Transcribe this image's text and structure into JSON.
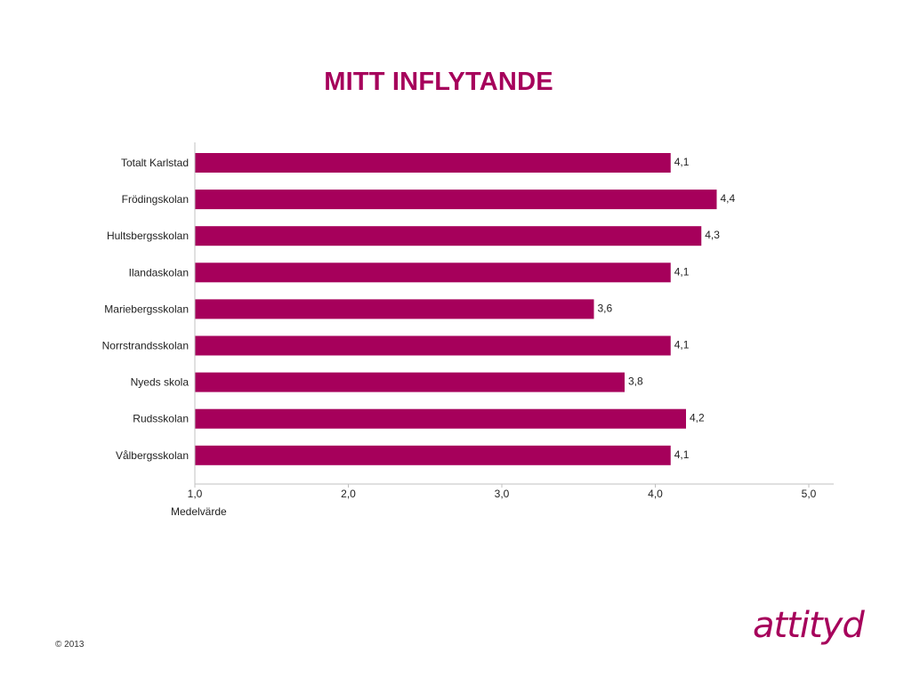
{
  "colors": {
    "brand": "#a6005b",
    "axis": "#c0c0c0",
    "text": "#222222"
  },
  "footer": {
    "copyright": "© 2013",
    "logo": "attityd"
  },
  "chart_data": {
    "type": "bar",
    "orientation": "horizontal",
    "title": "MITT INFLYTANDE",
    "xlabel": "Medelvärde",
    "ylabel": "",
    "xlim": [
      1.0,
      5.0
    ],
    "xticks": [
      "1,0",
      "2,0",
      "3,0",
      "4,0",
      "5,0"
    ],
    "grid": false,
    "categories": [
      "Totalt Karlstad",
      "Frödingskolan",
      "Hultsbergsskolan",
      "Ilandaskolan",
      "Mariebergsskolan",
      "Norrstrandsskolan",
      "Nyeds skola",
      "Rudsskolan",
      "Vålbergsskolan"
    ],
    "values": [
      4.1,
      4.4,
      4.3,
      4.1,
      3.6,
      4.1,
      3.8,
      4.2,
      4.1
    ],
    "value_labels": [
      "4,1",
      "4,4",
      "4,3",
      "4,1",
      "3,6",
      "4,1",
      "3,8",
      "4,2",
      "4,1"
    ]
  }
}
